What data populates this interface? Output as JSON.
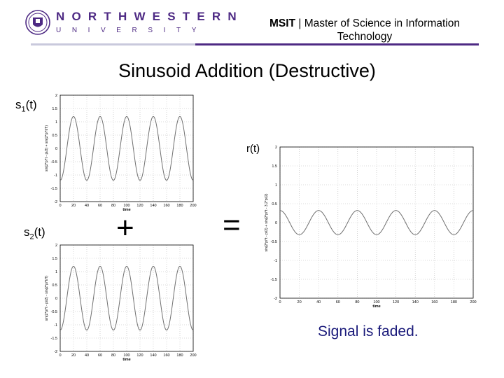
{
  "header": {
    "wordmark_top": "NORTHWESTERN",
    "wordmark_bottom": "UNIVERSITY",
    "program_abbr": "MSIT",
    "separator": "|",
    "program_line1": "Master of Science in Information",
    "program_line2": "Technology",
    "brand_color": "#4e2a84"
  },
  "slide": {
    "title": "Sinusoid Addition (Destructive)",
    "label_s1_base": "s",
    "label_s1_sub": "1",
    "label_s1_arg": "(t)",
    "label_s2_base": "s",
    "label_s2_sub": "2",
    "label_s2_arg": "(t)",
    "label_r": "r(t)",
    "plus": "+",
    "equals": "=",
    "note": "Signal is faded."
  },
  "chart_data": [
    {
      "type": "line",
      "name": "s1",
      "xlabel": "time",
      "ylabel": "sin(2*pi*t - pi/2) + sin(2*pi*t/T)",
      "xlim": [
        0,
        200
      ],
      "ylim": [
        -2,
        2
      ],
      "xticks": [
        0,
        20,
        40,
        60,
        80,
        100,
        120,
        140,
        160,
        180,
        200
      ],
      "yticks": [
        2,
        1.5,
        1,
        0.5,
        0,
        -0.5,
        -1,
        -1.5,
        -2
      ],
      "amplitude": 1.2,
      "period": 40,
      "phase_deg": 0,
      "grid": true
    },
    {
      "type": "line",
      "name": "s2",
      "xlabel": "time",
      "ylabel": "sin(2*pi*t - pi/2) - sin(2*pi*t/T)",
      "xlim": [
        0,
        200
      ],
      "ylim": [
        -2,
        2
      ],
      "xticks": [
        0,
        20,
        40,
        60,
        80,
        100,
        120,
        140,
        160,
        180,
        200
      ],
      "yticks": [
        2,
        1.5,
        1,
        0.5,
        0,
        -0.5,
        -1,
        -1.5,
        -2
      ],
      "amplitude": 1.2,
      "period": 40,
      "phase_deg": 0,
      "grid": true
    },
    {
      "type": "line",
      "name": "r",
      "xlabel": "time",
      "ylabel": "sin(2*pi*t - pi/2) + sin(2*pi*t - 3.2*pi/2)",
      "xlim": [
        0,
        200
      ],
      "ylim": [
        -2,
        2
      ],
      "xticks": [
        0,
        20,
        40,
        60,
        80,
        100,
        120,
        140,
        160,
        180,
        200
      ],
      "yticks": [
        2,
        1.5,
        1,
        0.5,
        0,
        -0.5,
        -1,
        -1.5,
        -2
      ],
      "amplitude": 0.32,
      "period": 40,
      "phase_deg": 180,
      "grid": true
    }
  ]
}
